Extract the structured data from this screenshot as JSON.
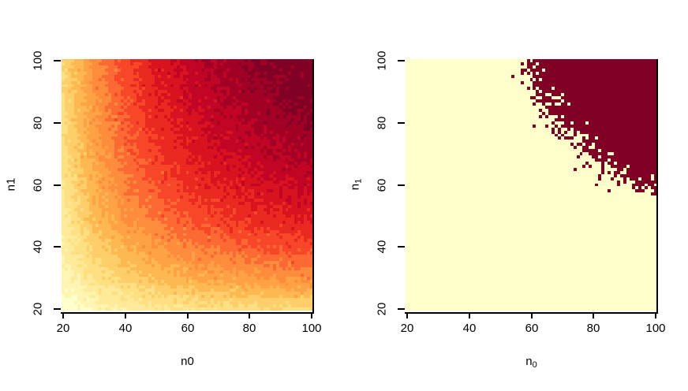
{
  "window": {
    "background": "#ffffff"
  },
  "chart_data": [
    {
      "type": "heatmap",
      "title": "",
      "xlabel": {
        "base": "n0",
        "sub": ""
      },
      "ylabel": {
        "base": "n1",
        "sub": ""
      },
      "x_ticks": [
        20,
        40,
        60,
        80,
        100
      ],
      "y_ticks": [
        20,
        40,
        60,
        80,
        100
      ],
      "x_range": [
        19.5,
        100.5
      ],
      "y_range": [
        19.5,
        100.5
      ],
      "cell_step": 1,
      "grid_n": [
        20,
        30,
        40,
        50,
        60,
        70,
        80,
        90,
        100
      ],
      "values": [
        [
          0.309,
          0.36,
          0.393,
          0.416,
          0.433,
          0.445,
          0.456,
          0.464,
          0.471
        ],
        [
          0.36,
          0.433,
          0.482,
          0.517,
          0.543,
          0.563,
          0.579,
          0.592,
          0.603
        ],
        [
          0.393,
          0.482,
          0.543,
          0.587,
          0.62,
          0.645,
          0.665,
          0.682,
          0.695
        ],
        [
          0.416,
          0.517,
          0.587,
          0.637,
          0.675,
          0.704,
          0.727,
          0.745,
          0.761
        ],
        [
          0.433,
          0.543,
          0.62,
          0.675,
          0.716,
          0.748,
          0.772,
          0.792,
          0.808
        ],
        [
          0.445,
          0.563,
          0.645,
          0.704,
          0.748,
          0.781,
          0.806,
          0.826,
          0.843
        ],
        [
          0.456,
          0.579,
          0.665,
          0.727,
          0.772,
          0.806,
          0.832,
          0.853,
          0.869
        ],
        [
          0.464,
          0.592,
          0.682,
          0.745,
          0.792,
          0.826,
          0.853,
          0.873,
          0.889
        ],
        [
          0.471,
          0.603,
          0.695,
          0.761,
          0.808,
          0.843,
          0.869,
          0.889,
          0.905
        ]
      ],
      "z_range": [
        0.305,
        0.91
      ],
      "n_levels": 15,
      "palette": [
        "#FFFFCC",
        "#FFEDA0",
        "#FED976",
        "#FEB24C",
        "#FD8D3C",
        "#FC4E2A",
        "#E31A1C",
        "#BD0026",
        "#800026"
      ],
      "noise_sd": 0.013,
      "seed": 42,
      "legend": "none",
      "grid_lines": "off"
    },
    {
      "type": "binary-heatmap",
      "title": "",
      "xlabel": {
        "base": "n",
        "sub": "0"
      },
      "ylabel": {
        "base": "n",
        "sub": "1"
      },
      "x_ticks": [
        20,
        40,
        60,
        80,
        100
      ],
      "y_ticks": [
        20,
        40,
        60,
        80,
        100
      ],
      "x_range": [
        19.5,
        100.5
      ],
      "y_range": [
        19.5,
        100.5
      ],
      "cell_step": 1,
      "grid_n": [
        20,
        30,
        40,
        50,
        60,
        70,
        80,
        90,
        100
      ],
      "values": [
        [
          0.309,
          0.36,
          0.393,
          0.416,
          0.433,
          0.445,
          0.456,
          0.464,
          0.471
        ],
        [
          0.36,
          0.433,
          0.482,
          0.517,
          0.543,
          0.563,
          0.579,
          0.592,
          0.603
        ],
        [
          0.393,
          0.482,
          0.543,
          0.587,
          0.62,
          0.645,
          0.665,
          0.682,
          0.695
        ],
        [
          0.416,
          0.517,
          0.587,
          0.637,
          0.675,
          0.704,
          0.727,
          0.745,
          0.761
        ],
        [
          0.433,
          0.543,
          0.62,
          0.675,
          0.716,
          0.748,
          0.772,
          0.792,
          0.808
        ],
        [
          0.445,
          0.563,
          0.645,
          0.704,
          0.748,
          0.781,
          0.806,
          0.826,
          0.843
        ],
        [
          0.456,
          0.579,
          0.665,
          0.727,
          0.772,
          0.806,
          0.832,
          0.853,
          0.869
        ],
        [
          0.464,
          0.592,
          0.682,
          0.745,
          0.792,
          0.826,
          0.853,
          0.873,
          0.889
        ],
        [
          0.471,
          0.603,
          0.695,
          0.761,
          0.808,
          0.843,
          0.869,
          0.889,
          0.905
        ]
      ],
      "threshold": 0.8,
      "color_below": "#FFFFCC",
      "color_above": "#800026",
      "noise_sd": 0.013,
      "seed": 1337,
      "legend": "none",
      "grid_lines": "off"
    }
  ]
}
